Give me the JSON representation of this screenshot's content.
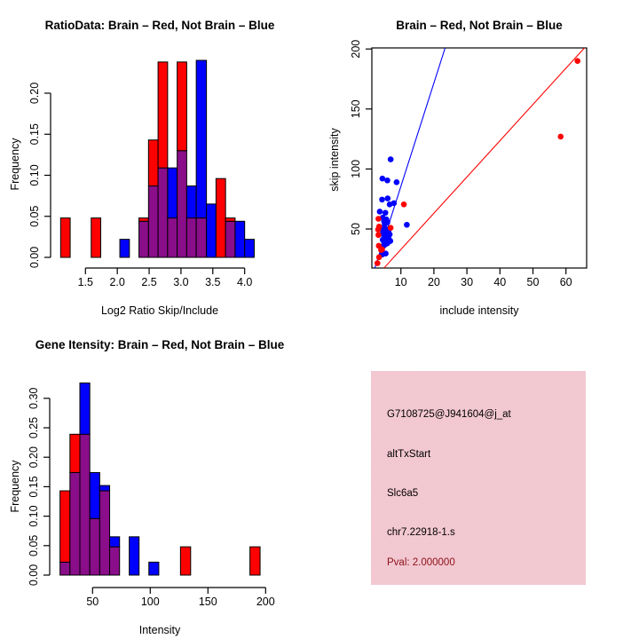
{
  "colors": {
    "red": "#fe0000",
    "blue": "#0000fe",
    "purple": "#8a0d8a",
    "dark_red": "#8e1117",
    "pink": "#f2c5cf"
  },
  "chart_data": [
    {
      "id": "ratio_hist",
      "type": "bar",
      "title": "RatioData: Brain – Red, Not Brain – Blue",
      "xlabel": "Log2 Ratio Skip/Include",
      "ylabel": "Frequency",
      "xlim": [
        0.95,
        4.45
      ],
      "ylim": [
        0,
        0.24
      ],
      "grid": false,
      "xticks": [
        "1.5",
        "2.0",
        "2.5",
        "3.0",
        "3.5",
        "4.0"
      ],
      "yticks": [
        "0.00",
        "0.05",
        "0.10",
        "0.15",
        "0.20"
      ],
      "note": "overlapping histograms: red = Brain, blue = Not Brain, purple = overlap",
      "bars": [
        {
          "x0": 1.11,
          "x1": 1.26,
          "segments": [
            {
              "color": "red",
              "y0": 0,
              "y1": 0.048
            }
          ]
        },
        {
          "x0": 1.59,
          "x1": 1.74,
          "segments": [
            {
              "color": "red",
              "y0": 0,
              "y1": 0.048
            }
          ]
        },
        {
          "x0": 2.04,
          "x1": 2.19,
          "segments": [
            {
              "color": "blue",
              "y0": 0,
              "y1": 0.022
            }
          ]
        },
        {
          "x0": 2.34,
          "x1": 2.49,
          "segments": [
            {
              "color": "purple",
              "y0": 0,
              "y1": 0.044
            },
            {
              "color": "red",
              "y0": 0.044,
              "y1": 0.048
            }
          ]
        },
        {
          "x0": 2.49,
          "x1": 2.64,
          "segments": [
            {
              "color": "purple",
              "y0": 0,
              "y1": 0.087
            },
            {
              "color": "red",
              "y0": 0.087,
              "y1": 0.143
            }
          ]
        },
        {
          "x0": 2.64,
          "x1": 2.79,
          "segments": [
            {
              "color": "purple",
              "y0": 0,
              "y1": 0.109
            },
            {
              "color": "red",
              "y0": 0.109,
              "y1": 0.238
            }
          ]
        },
        {
          "x0": 2.79,
          "x1": 2.94,
          "segments": [
            {
              "color": "purple",
              "y0": 0,
              "y1": 0.048
            },
            {
              "color": "blue",
              "y0": 0.048,
              "y1": 0.109
            }
          ]
        },
        {
          "x0": 2.94,
          "x1": 3.09,
          "segments": [
            {
              "color": "purple",
              "y0": 0,
              "y1": 0.13
            },
            {
              "color": "red",
              "y0": 0.13,
              "y1": 0.238
            }
          ]
        },
        {
          "x0": 3.09,
          "x1": 3.24,
          "segments": [
            {
              "color": "purple",
              "y0": 0,
              "y1": 0.048
            },
            {
              "color": "blue",
              "y0": 0.048,
              "y1": 0.087
            }
          ]
        },
        {
          "x0": 3.24,
          "x1": 3.4,
          "segments": [
            {
              "color": "purple",
              "y0": 0,
              "y1": 0.048
            },
            {
              "color": "blue",
              "y0": 0.048,
              "y1": 0.24
            }
          ]
        },
        {
          "x0": 3.4,
          "x1": 3.55,
          "segments": [
            {
              "color": "blue",
              "y0": 0,
              "y1": 0.065
            }
          ]
        },
        {
          "x0": 3.55,
          "x1": 3.7,
          "segments": [
            {
              "color": "red",
              "y0": 0,
              "y1": 0.096
            }
          ]
        },
        {
          "x0": 3.7,
          "x1": 3.85,
          "segments": [
            {
              "color": "purple",
              "y0": 0,
              "y1": 0.044
            },
            {
              "color": "red",
              "y0": 0.044,
              "y1": 0.048
            }
          ]
        },
        {
          "x0": 3.85,
          "x1": 4.0,
          "segments": [
            {
              "color": "blue",
              "y0": 0,
              "y1": 0.044
            }
          ]
        },
        {
          "x0": 4.0,
          "x1": 4.15,
          "segments": [
            {
              "color": "blue",
              "y0": 0,
              "y1": 0.022
            }
          ]
        }
      ]
    },
    {
      "id": "scatter",
      "type": "scatter",
      "title": "Brain – Red, Not Brain – Blue",
      "xlabel": "include intensity",
      "ylabel": "skip intensity",
      "xlim": [
        1.2,
        66.3
      ],
      "ylim": [
        17.5,
        201
      ],
      "grid": false,
      "xticks": [
        "10",
        "20",
        "30",
        "40",
        "50",
        "60"
      ],
      "yticks": [
        "50",
        "100",
        "150",
        "200"
      ],
      "lines": [
        {
          "color": "blue",
          "x1": 2.1,
          "y1": 17.5,
          "x2": 23.4,
          "y2": 200.9
        },
        {
          "color": "red",
          "x1": 4.9,
          "y1": 17.5,
          "x2": 65.6,
          "y2": 200.9
        }
      ],
      "blue_points": [
        [
          6.9,
          108
        ],
        [
          4.4,
          92
        ],
        [
          5.9,
          90.5
        ],
        [
          8.7,
          89
        ],
        [
          6.0,
          75.5
        ],
        [
          4.3,
          74.5
        ],
        [
          7.9,
          71.5
        ],
        [
          6.6,
          70.5
        ],
        [
          3.6,
          64.5
        ],
        [
          5.3,
          63.5
        ],
        [
          4.5,
          59.5
        ],
        [
          5.6,
          58
        ],
        [
          4.9,
          56.5
        ],
        [
          5.9,
          55.5
        ],
        [
          5.1,
          54
        ],
        [
          11.8,
          53.5
        ],
        [
          4.2,
          50.5
        ],
        [
          5.4,
          50
        ],
        [
          6.3,
          49
        ],
        [
          4.6,
          47.5
        ],
        [
          5.6,
          46.5
        ],
        [
          6.6,
          45.5
        ],
        [
          4.9,
          44.5
        ],
        [
          5.9,
          44
        ],
        [
          5.1,
          42.5
        ],
        [
          6.3,
          42
        ],
        [
          4.5,
          41
        ],
        [
          5.6,
          40.5
        ],
        [
          6.8,
          40
        ],
        [
          4.9,
          39
        ],
        [
          5.9,
          38
        ],
        [
          5.2,
          37
        ],
        [
          4.6,
          35.5
        ],
        [
          5.4,
          29.5
        ],
        [
          4.4,
          28.8
        ]
      ],
      "red_points": [
        [
          63.5,
          190
        ],
        [
          58.4,
          127
        ],
        [
          10.9,
          70.5
        ],
        [
          3.2,
          58.5
        ],
        [
          3.4,
          52
        ],
        [
          6.9,
          51
        ],
        [
          3.1,
          49.5
        ],
        [
          3.2,
          45
        ],
        [
          3.3,
          36
        ],
        [
          4.3,
          33
        ],
        [
          4.0,
          32.5
        ],
        [
          3.4,
          26.5
        ],
        [
          2.9,
          21.5
        ]
      ]
    },
    {
      "id": "gene_hist",
      "type": "bar",
      "title": "Gene Itensity: Brain – Red, Not Brain – Blue",
      "xlabel": "Intensity",
      "ylabel": "Frequency",
      "xlim": [
        12,
        206
      ],
      "ylim": [
        0,
        0.33
      ],
      "grid": false,
      "xticks": [
        "50",
        "100",
        "150",
        "200"
      ],
      "yticks": [
        "0.00",
        "0.05",
        "0.10",
        "0.15",
        "0.20",
        "0.25",
        "0.30"
      ],
      "note": "overlapping histograms: red = Brain, blue = Not Brain, purple = overlap",
      "bars": [
        {
          "x0": 21.8,
          "x1": 30.4,
          "segments": [
            {
              "color": "purple",
              "y0": 0,
              "y1": 0.022
            },
            {
              "color": "red",
              "y0": 0.022,
              "y1": 0.143
            }
          ]
        },
        {
          "x0": 30.4,
          "x1": 39.0,
          "segments": [
            {
              "color": "purple",
              "y0": 0,
              "y1": 0.174
            },
            {
              "color": "red",
              "y0": 0.174,
              "y1": 0.239
            }
          ]
        },
        {
          "x0": 39.0,
          "x1": 47.6,
          "segments": [
            {
              "color": "purple",
              "y0": 0,
              "y1": 0.239
            },
            {
              "color": "blue",
              "y0": 0.239,
              "y1": 0.326
            }
          ]
        },
        {
          "x0": 47.6,
          "x1": 56.2,
          "segments": [
            {
              "color": "purple",
              "y0": 0,
              "y1": 0.096
            },
            {
              "color": "blue",
              "y0": 0.096,
              "y1": 0.174
            }
          ]
        },
        {
          "x0": 56.2,
          "x1": 64.8,
          "segments": [
            {
              "color": "purple",
              "y0": 0,
              "y1": 0.143
            },
            {
              "color": "blue",
              "y0": 0.143,
              "y1": 0.152
            }
          ]
        },
        {
          "x0": 64.8,
          "x1": 73.4,
          "segments": [
            {
              "color": "purple",
              "y0": 0,
              "y1": 0.048
            },
            {
              "color": "blue",
              "y0": 0.048,
              "y1": 0.065
            }
          ]
        },
        {
          "x0": 81.8,
          "x1": 90.3,
          "segments": [
            {
              "color": "blue",
              "y0": 0,
              "y1": 0.065
            }
          ]
        },
        {
          "x0": 98.8,
          "x1": 107.4,
          "segments": [
            {
              "color": "blue",
              "y0": 0,
              "y1": 0.022
            }
          ]
        },
        {
          "x0": 126.2,
          "x1": 135.0,
          "segments": [
            {
              "color": "red",
              "y0": 0,
              "y1": 0.048
            }
          ]
        },
        {
          "x0": 186.4,
          "x1": 195.2,
          "segments": [
            {
              "color": "red",
              "y0": 0,
              "y1": 0.048
            }
          ]
        }
      ]
    }
  ],
  "info_box": {
    "lines": [
      "G7108725@J941604@j_at",
      "altTxStart",
      "Slc6a5",
      "chr7.22918-1.s"
    ],
    "pval_line": "Pval: 2.000000"
  }
}
